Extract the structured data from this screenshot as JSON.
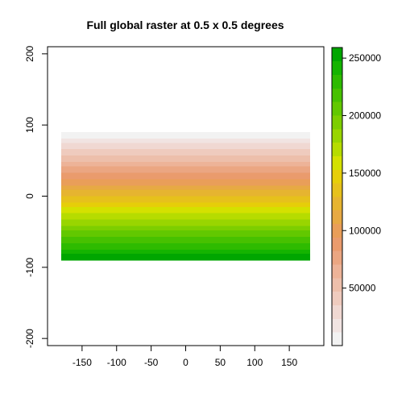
{
  "chart_data": {
    "type": "heatmap",
    "title": "Full global raster at 0.5 x 0.5 degrees",
    "xlabel": "",
    "ylabel": "",
    "xlim": [
      -200,
      200
    ],
    "ylim": [
      -210,
      210
    ],
    "x_ticks": [
      -150,
      -100,
      -50,
      0,
      50,
      100,
      150
    ],
    "x_tick_labels": [
      "-150",
      "-100",
      "-50",
      "0",
      "50",
      "100",
      "150"
    ],
    "y_ticks": [
      -200,
      -100,
      0,
      100,
      200
    ],
    "y_tick_labels": [
      "-200",
      "-100",
      "0",
      "100",
      "200"
    ],
    "raster_extent": {
      "xmin": -180,
      "xmax": 180,
      "ymin": -90,
      "ymax": 90
    },
    "cell_size_degrees": 0.5,
    "value_range": [
      0,
      259200
    ],
    "gradient": "value increases from north (top) to south (bottom)",
    "legend": {
      "placement": "right",
      "min": 0,
      "max": 259200,
      "ticks": [
        50000,
        100000,
        150000,
        200000,
        250000
      ],
      "tick_labels": [
        "50000",
        "100000",
        "150000",
        "200000",
        "250000"
      ],
      "palette": "terrain.colors (reversed)",
      "colors": [
        "#F2F2F2",
        "#F1E4E2",
        "#F0D8D2",
        "#EFCBBE",
        "#EDBFAB",
        "#EDB398",
        "#EBA682",
        "#EA9B6D",
        "#E99E59",
        "#E7A944",
        "#E6B430",
        "#E6C11C",
        "#E6CE09",
        "#D4E100",
        "#B6DC00",
        "#99D500",
        "#7DCE00",
        "#62C800",
        "#47C100",
        "#2EBB00",
        "#14B400",
        "#00A600"
      ]
    },
    "grid": false
  }
}
